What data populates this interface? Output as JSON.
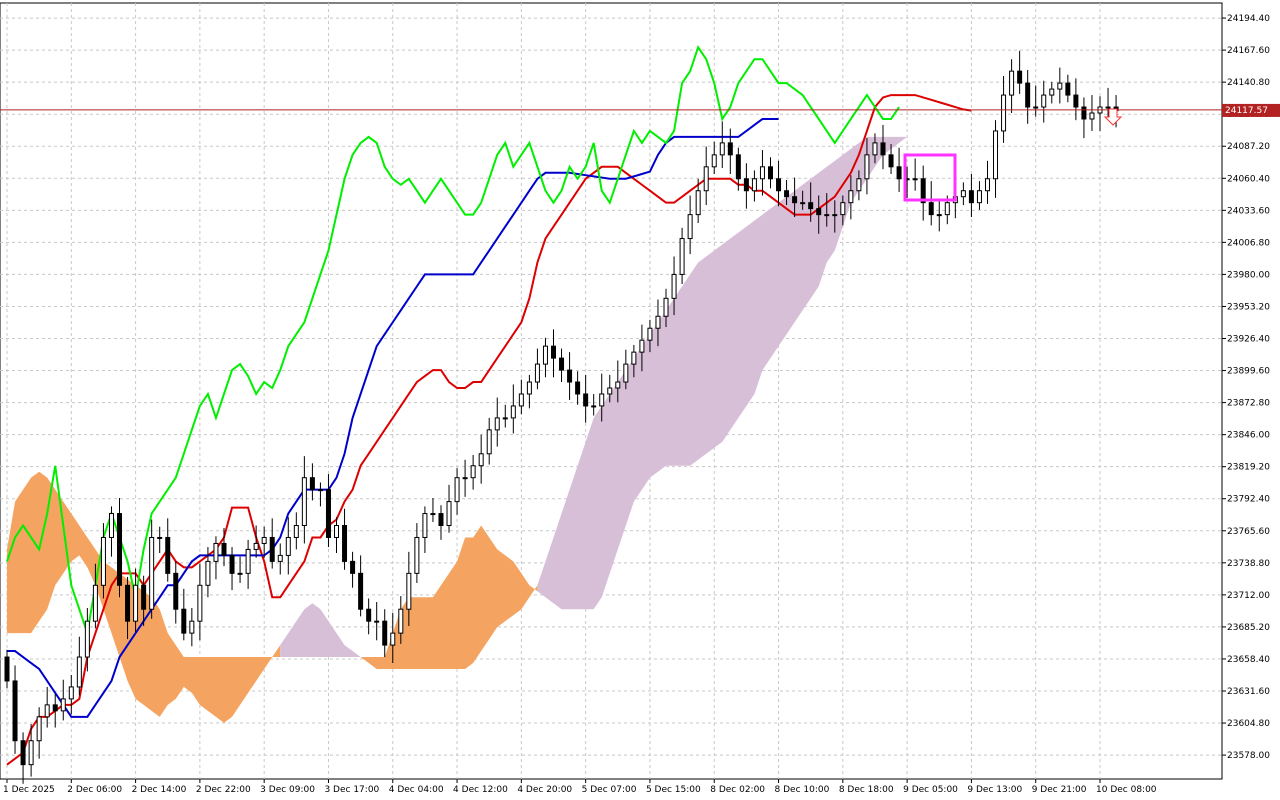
{
  "colors": {
    "background": "#ffffff",
    "grid": "#c8c8c8",
    "axis": "#000000",
    "candle_up": "#ffffff",
    "candle_down": "#000000",
    "tenkan": "#dd0000",
    "kijun": "#0000cc",
    "chikou": "#00ee00",
    "cloud_bull": "#f4a460",
    "cloud_bear": "#d8bfd8",
    "price_line": "#b22222",
    "highlight_box": "#ff33ff",
    "signal_arrow": "#ff3333"
  },
  "chart_data": {
    "type": "candlestick",
    "indicator": "ichimoku",
    "grid": true,
    "ylim": [
      23558,
      24207
    ],
    "y_ticks": [
      "24194.40",
      "24167.60",
      "24140.80",
      "24114.00",
      "24087.20",
      "24060.40",
      "24033.60",
      "24006.80",
      "23980.00",
      "23953.20",
      "23926.40",
      "23899.60",
      "23872.80",
      "23846.00",
      "23819.20",
      "23792.40",
      "23765.60",
      "23738.80",
      "23712.00",
      "23685.20",
      "23658.40",
      "23631.60",
      "23604.80",
      "23578.00"
    ],
    "x_ticks": [
      "1 Dec 2025",
      "2 Dec 06:00",
      "2 Dec 14:00",
      "2 Dec 22:00",
      "3 Dec 09:00",
      "3 Dec 17:00",
      "4 Dec 04:00",
      "4 Dec 12:00",
      "4 Dec 20:00",
      "5 Dec 07:00",
      "5 Dec 15:00",
      "8 Dec 02:00",
      "8 Dec 10:00",
      "8 Dec 18:00",
      "9 Dec 05:00",
      "9 Dec 13:00",
      "9 Dec 21:00",
      "10 Dec 08:00"
    ],
    "current_price": "24117.57",
    "candles": {
      "bars_per_tick": 8,
      "open": [
        23660,
        23640,
        23590,
        23570,
        23590,
        23610,
        23620,
        23615,
        23625,
        23635,
        23660,
        23690,
        23720,
        23760,
        23780,
        23720,
        23690,
        23720,
        23700,
        23760,
        23760,
        23730,
        23700,
        23680,
        23690,
        23720,
        23740,
        23755,
        23745,
        23730,
        23730,
        23750,
        23755,
        23760,
        23740,
        23745,
        23760,
        23770,
        23810,
        23800,
        23800,
        23760,
        23770,
        23740,
        23730,
        23700,
        23690,
        23690,
        23670,
        23680,
        23700,
        23730,
        23760,
        23780,
        23780,
        23770,
        23790,
        23810,
        23810,
        23820,
        23830,
        23850,
        23860,
        23860,
        23870,
        23880,
        23890,
        23905,
        23920,
        23910,
        23900,
        23890,
        23880,
        23870,
        23870,
        23880,
        23885,
        23890,
        23905,
        23915,
        23925,
        23935,
        23945,
        23960,
        23980,
        24010,
        24030,
        24050,
        24070,
        24080,
        24090,
        24080,
        24060,
        24050,
        24060,
        24070,
        24060,
        24050,
        24045,
        24040,
        24040,
        24035,
        24030,
        24030,
        24030,
        24040,
        24050,
        24060,
        24080,
        24090,
        24080,
        24070,
        24060,
        24060,
        24060,
        24040,
        24030,
        24030,
        24040,
        24045,
        24050,
        24040,
        24050,
        24060,
        24100,
        24130,
        24150,
        24140,
        24120,
        24120,
        24130,
        24135,
        24140,
        24130,
        24120,
        24110,
        24115,
        24120,
        24120
      ],
      "close": [
        23640,
        23590,
        23570,
        23590,
        23610,
        23620,
        23615,
        23625,
        23635,
        23660,
        23690,
        23720,
        23760,
        23780,
        23720,
        23690,
        23720,
        23700,
        23760,
        23760,
        23730,
        23700,
        23680,
        23690,
        23720,
        23740,
        23755,
        23745,
        23730,
        23730,
        23750,
        23755,
        23760,
        23740,
        23745,
        23760,
        23770,
        23810,
        23800,
        23800,
        23760,
        23770,
        23740,
        23730,
        23700,
        23690,
        23690,
        23670,
        23680,
        23700,
        23730,
        23760,
        23780,
        23780,
        23770,
        23790,
        23810,
        23810,
        23820,
        23830,
        23850,
        23860,
        23860,
        23870,
        23880,
        23890,
        23905,
        23920,
        23910,
        23900,
        23890,
        23880,
        23870,
        23870,
        23880,
        23885,
        23890,
        23905,
        23915,
        23925,
        23935,
        23945,
        23960,
        23980,
        24010,
        24030,
        24050,
        24070,
        24080,
        24090,
        24080,
        24060,
        24050,
        24060,
        24070,
        24060,
        24050,
        24045,
        24040,
        24040,
        24035,
        24030,
        24030,
        24030,
        24040,
        24050,
        24060,
        24080,
        24090,
        24080,
        24070,
        24060,
        24060,
        24060,
        24040,
        24030,
        24030,
        24040,
        24045,
        24050,
        24040,
        24050,
        24060,
        24100,
        24130,
        24150,
        24140,
        24120,
        24120,
        24130,
        24135,
        24140,
        24130,
        24120,
        24110,
        24115,
        24120,
        24120,
        24117
      ]
    },
    "series": [
      {
        "indicator": "tenkan",
        "values": [
          23570,
          23575,
          23580,
          23600,
          23610,
          23610,
          23615,
          23620,
          23620,
          23625,
          23660,
          23680,
          23700,
          23720,
          23730,
          23730,
          23730,
          23720,
          23730,
          23740,
          23750,
          23740,
          23735,
          23735,
          23740,
          23745,
          23750,
          23760,
          23785,
          23785,
          23785,
          23760,
          23740,
          23710,
          23710,
          23720,
          23730,
          23740,
          23760,
          23760,
          23770,
          23775,
          23790,
          23800,
          23820,
          23830,
          23840,
          23850,
          23860,
          23870,
          23880,
          23890,
          23895,
          23900,
          23900,
          23890,
          23885,
          23885,
          23890,
          23890,
          23900,
          23910,
          23920,
          23930,
          23940,
          23960,
          23990,
          24010,
          24020,
          24030,
          24040,
          24050,
          24060,
          24065,
          24070,
          24070,
          24070,
          24065,
          24060,
          24055,
          24050,
          24045,
          24040,
          24040,
          24045,
          24050,
          24055,
          24060,
          24060,
          24060,
          24060,
          24055,
          24055,
          24050,
          24050,
          24045,
          24040,
          24035,
          24030,
          24030,
          24030,
          24035,
          24040,
          24045,
          24055,
          24065,
          24080,
          24100,
          24120,
          24128,
          24130,
          24130,
          24130,
          24130,
          24128,
          24126,
          24124,
          24122,
          24120,
          24118,
          24117
        ]
      },
      {
        "indicator": "kijun",
        "values": [
          23665,
          23665,
          23660,
          23655,
          23650,
          23640,
          23630,
          23620,
          23610,
          23610,
          23610,
          23620,
          23630,
          23640,
          23660,
          23670,
          23680,
          23690,
          23700,
          23710,
          23720,
          23720,
          23730,
          23740,
          23745,
          23745,
          23745,
          23745,
          23745,
          23745,
          23745,
          23745,
          23745,
          23750,
          23760,
          23780,
          23790,
          23800,
          23800,
          23800,
          23800,
          23810,
          23830,
          23860,
          23880,
          23900,
          23920,
          23930,
          23940,
          23950,
          23960,
          23970,
          23980,
          23980,
          23980,
          23980,
          23980,
          23980,
          23980,
          23990,
          24000,
          24010,
          24020,
          24030,
          24040,
          24050,
          24060,
          24065,
          24065,
          24065,
          24065,
          24064,
          24063,
          24062,
          24061,
          24060,
          24060,
          24060,
          24062,
          24064,
          24066,
          24080,
          24090,
          24095,
          24095,
          24095,
          24095,
          24095,
          24095,
          24095,
          24095,
          24095,
          24100,
          24105,
          24110,
          24110,
          24110
        ]
      },
      {
        "indicator": "chikou",
        "values": [
          23740,
          23760,
          23770,
          23760,
          23750,
          23780,
          23820,
          23770,
          23720,
          23700,
          23680,
          23720,
          23760,
          23780,
          23760,
          23740,
          23710,
          23750,
          23780,
          23790,
          23800,
          23810,
          23830,
          23850,
          23870,
          23880,
          23860,
          23880,
          23900,
          23905,
          23895,
          23880,
          23890,
          23885,
          23900,
          23920,
          23930,
          23940,
          23960,
          23980,
          24000,
          24030,
          24060,
          24080,
          24090,
          24095,
          24090,
          24070,
          24060,
          24055,
          24060,
          24050,
          24040,
          24050,
          24060,
          24050,
          24040,
          24030,
          24030,
          24040,
          24060,
          24080,
          24090,
          24070,
          24080,
          24090,
          24070,
          24050,
          24040,
          24050,
          24070,
          24060,
          24070,
          24090,
          24050,
          24040,
          24060,
          24080,
          24100,
          24090,
          24100,
          24095,
          24090,
          24100,
          24140,
          24150,
          24170,
          24160,
          24140,
          24110,
          24120,
          24140,
          24150,
          24160,
          24160,
          24150,
          24140,
          24140,
          24135,
          24130,
          24120,
          24110,
          24100,
          24090,
          24100,
          24110,
          24120,
          24130,
          24120,
          24110,
          24110,
          24120
        ]
      }
    ],
    "cloud": {
      "span_a": [
        23750,
        23790,
        23800,
        23810,
        23815,
        23810,
        23800,
        23790,
        23780,
        23770,
        23760,
        23750,
        23740,
        23735,
        23730,
        23725,
        23720,
        23715,
        23710,
        23700,
        23680,
        23670,
        23660,
        23660,
        23660,
        23660,
        23660,
        23660,
        23660,
        23660,
        23660,
        23660,
        23660,
        23660,
        23660,
        23660,
        23660,
        23660,
        23660,
        23660,
        23660,
        23660,
        23660,
        23660,
        23660,
        23660,
        23660,
        23660,
        23680,
        23700,
        23710,
        23710,
        23710,
        23710,
        23720,
        23730,
        23740,
        23760,
        23760,
        23770,
        23760,
        23750,
        23745,
        23740,
        23730,
        23720,
        23715,
        23710,
        23705,
        23700,
        23700,
        23700,
        23700,
        23700,
        23710,
        23730,
        23750,
        23770,
        23790,
        23800,
        23810,
        23815,
        23820,
        23820,
        23820,
        23820,
        23825,
        23830,
        23835,
        23840,
        23850,
        23860,
        23870,
        23880,
        23900,
        23910,
        23920,
        23930,
        23940,
        23950,
        23960,
        23970,
        23990,
        24000,
        24020,
        24040,
        24050,
        24060,
        24070,
        24080,
        24085,
        24090,
        24095,
        24095,
        24095,
        24095,
        24095,
        24095,
        24095,
        24095,
        24095
      ],
      "span_b": [
        23680,
        23680,
        23680,
        23680,
        23690,
        23700,
        23720,
        23730,
        23740,
        23745,
        23735,
        23720,
        23700,
        23680,
        23660,
        23640,
        23625,
        23620,
        23615,
        23610,
        23620,
        23625,
        23635,
        23630,
        23620,
        23615,
        23610,
        23605,
        23610,
        23620,
        23630,
        23640,
        23650,
        23660,
        23670,
        23680,
        23690,
        23700,
        23705,
        23700,
        23690,
        23680,
        23670,
        23665,
        23660,
        23655,
        23650,
        23650,
        23650,
        23650,
        23650,
        23650,
        23650,
        23650,
        23650,
        23650,
        23650,
        23650,
        23655,
        23665,
        23675,
        23685,
        23690,
        23695,
        23700,
        23710,
        23720,
        23740,
        23760,
        23780,
        23800,
        23820,
        23840,
        23860,
        23870,
        23880,
        23890,
        23900,
        23910,
        23920,
        23930,
        23940,
        23950,
        23960,
        23970,
        23980,
        23990,
        23995,
        24000,
        24005,
        24010,
        24015,
        24020,
        24025,
        24030,
        24035,
        24040,
        24045,
        24050,
        24055,
        24060,
        24065,
        24070,
        24075,
        24080,
        24085,
        24090,
        24095,
        24095,
        24095,
        24095,
        24095,
        24095,
        24095,
        24095,
        24095,
        24095,
        24095,
        24095,
        24095,
        24095
      ]
    }
  }
}
